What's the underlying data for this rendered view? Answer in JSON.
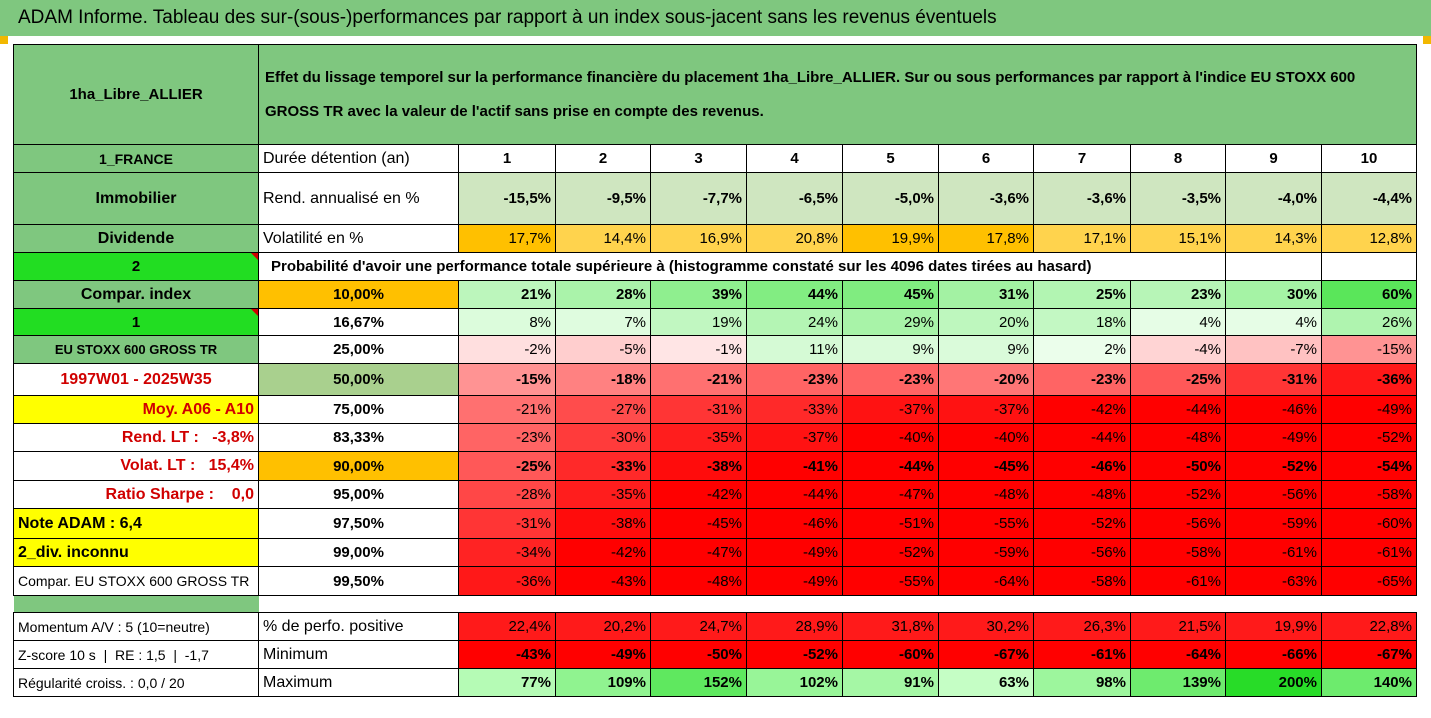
{
  "title": "ADAM Informe. Tableau des sur-(sous-)performances par rapport à un index sous-jacent sans les revenus éventuels",
  "header": {
    "fund_name": "1ha_Libre_ALLIER",
    "description": "Effet du lissage temporel sur la performance financière du placement 1ha_Libre_ALLIER. Sur ou sous performances par rapport à l'indice EU STOXX 600 GROSS TR avec la valeur de l'actif sans prise en compte des revenus."
  },
  "years_label": "Durée détention (an)",
  "years": [
    "1",
    "2",
    "3",
    "4",
    "5",
    "6",
    "7",
    "8",
    "9",
    "10"
  ],
  "left_labels": {
    "country": "1_FRANCE",
    "category": "Immobilier",
    "dividend": "Dividende",
    "num2": "2",
    "compar_index": "Compar. index",
    "num1": "1",
    "index_name": "EU STOXX 600 GROSS TR",
    "period": "1997W01 - 2025W35",
    "moy": "Moy. A06 - A10",
    "rend_lt": "Rend. LT :   -3,8%",
    "volat_lt": "Volat. LT :   15,4%",
    "sharpe": "Ratio Sharpe :    0,0",
    "note": "Note ADAM : 6,4",
    "div": "2_div. inconnu",
    "compar_full": "Compar. EU STOXX 600 GROSS TR",
    "momentum": "Momentum A/V : 5 (10=neutre)",
    "zscore": "Z-score 10 s  |  RE : 1,5  |  -1,7",
    "regularite": "Régularité croiss. : 0,0 / 20"
  },
  "rend": {
    "label": "Rend. annualisé en %",
    "values": [
      "-15,5%",
      "-9,5%",
      "-7,7%",
      "-6,5%",
      "-5,0%",
      "-3,6%",
      "-3,6%",
      "-3,5%",
      "-4,0%",
      "-4,4%"
    ]
  },
  "volat": {
    "label": "Volatilité en %",
    "values": [
      "17,7%",
      "14,4%",
      "16,9%",
      "20,8%",
      "19,9%",
      "17,8%",
      "17,1%",
      "15,1%",
      "14,3%",
      "12,8%"
    ]
  },
  "prob_text": "Probabilité d'avoir une performance totale supérieure à (histogramme constaté sur les 4096 dates tirées au hasard)",
  "quantiles": [
    {
      "p": "10,00%",
      "values": [
        "21%",
        "28%",
        "39%",
        "44%",
        "45%",
        "31%",
        "25%",
        "23%",
        "30%",
        "60%"
      ]
    },
    {
      "p": "16,67%",
      "values": [
        "8%",
        "7%",
        "19%",
        "24%",
        "29%",
        "20%",
        "18%",
        "4%",
        "4%",
        "26%"
      ]
    },
    {
      "p": "25,00%",
      "values": [
        "-2%",
        "-5%",
        "-1%",
        "11%",
        "9%",
        "9%",
        "2%",
        "-4%",
        "-7%",
        "-15%"
      ]
    },
    {
      "p": "50,00%",
      "values": [
        "-15%",
        "-18%",
        "-21%",
        "-23%",
        "-23%",
        "-20%",
        "-23%",
        "-25%",
        "-31%",
        "-36%"
      ]
    },
    {
      "p": "75,00%",
      "values": [
        "-21%",
        "-27%",
        "-31%",
        "-33%",
        "-37%",
        "-37%",
        "-42%",
        "-44%",
        "-46%",
        "-49%"
      ]
    },
    {
      "p": "83,33%",
      "values": [
        "-23%",
        "-30%",
        "-35%",
        "-37%",
        "-40%",
        "-40%",
        "-44%",
        "-48%",
        "-49%",
        "-52%"
      ]
    },
    {
      "p": "90,00%",
      "values": [
        "-25%",
        "-33%",
        "-38%",
        "-41%",
        "-44%",
        "-45%",
        "-46%",
        "-50%",
        "-52%",
        "-54%"
      ]
    },
    {
      "p": "95,00%",
      "values": [
        "-28%",
        "-35%",
        "-42%",
        "-44%",
        "-47%",
        "-48%",
        "-48%",
        "-52%",
        "-56%",
        "-58%"
      ]
    },
    {
      "p": "97,50%",
      "values": [
        "-31%",
        "-38%",
        "-45%",
        "-46%",
        "-51%",
        "-55%",
        "-52%",
        "-56%",
        "-59%",
        "-60%"
      ]
    },
    {
      "p": "99,00%",
      "values": [
        "-34%",
        "-42%",
        "-47%",
        "-49%",
        "-52%",
        "-59%",
        "-56%",
        "-58%",
        "-61%",
        "-61%"
      ]
    },
    {
      "p": "99,50%",
      "values": [
        "-36%",
        "-43%",
        "-48%",
        "-49%",
        "-55%",
        "-64%",
        "-58%",
        "-61%",
        "-63%",
        "-65%"
      ]
    }
  ],
  "positive": {
    "label": "% de perfo. positive",
    "values": [
      "22,4%",
      "20,2%",
      "24,7%",
      "28,9%",
      "31,8%",
      "30,2%",
      "26,3%",
      "21,5%",
      "19,9%",
      "22,8%"
    ]
  },
  "minimum": {
    "label": "Minimum",
    "values": [
      "-43%",
      "-49%",
      "-50%",
      "-52%",
      "-60%",
      "-67%",
      "-61%",
      "-64%",
      "-66%",
      "-67%"
    ]
  },
  "maximum": {
    "label": "Maximum",
    "values": [
      "77%",
      "109%",
      "152%",
      "102%",
      "91%",
      "63%",
      "98%",
      "139%",
      "200%",
      "140%"
    ]
  },
  "colors": {
    "header_green": "#7fc77f",
    "bright_green": "#22dd22",
    "orange": "#ffc000",
    "yellow": "#ffff00",
    "red_text": "#d00000"
  }
}
